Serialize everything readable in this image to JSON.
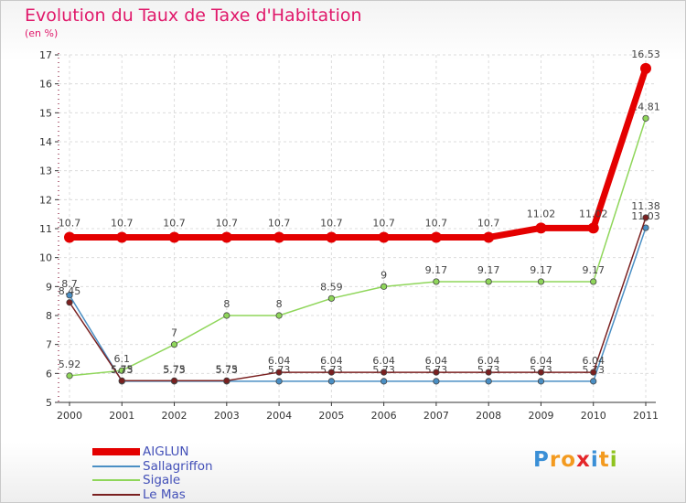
{
  "title": "Evolution du Taux de Taxe d'Habitation",
  "unit": "(en %)",
  "brand": {
    "letters": [
      "P",
      "r",
      "o",
      "x",
      "i",
      "t",
      "i"
    ],
    "colors": [
      "#3a8fd6",
      "#f39a1f",
      "#f39a1f",
      "#e4262a",
      "#3a8fd6",
      "#f39a1f",
      "#8fc31f"
    ]
  },
  "chart_data": {
    "type": "line",
    "title": "Evolution du Taux de Taxe d'Habitation",
    "ylabel": "(en %)",
    "xlabel": "",
    "x": [
      "2000",
      "2001",
      "2002",
      "2003",
      "2004",
      "2005",
      "2006",
      "2007",
      "2008",
      "2009",
      "2010",
      "2011"
    ],
    "ylim": [
      5,
      17
    ],
    "yticks": [
      "5",
      "6",
      "7",
      "8",
      "9",
      "10",
      "11",
      "12",
      "13",
      "14",
      "15",
      "16",
      "17"
    ],
    "grid": true,
    "series": [
      {
        "name": "AIGLUN",
        "color": "#e40000",
        "values": [
          10.7,
          10.7,
          10.7,
          10.7,
          10.7,
          10.7,
          10.7,
          10.7,
          10.7,
          11.02,
          11.02,
          16.53
        ],
        "labels": [
          "10.7",
          "10.7",
          "10.7",
          "10.7",
          "10.7",
          "10.7",
          "10.7",
          "10.7",
          "10.7",
          "11.02",
          "11.02",
          "16.53"
        ]
      },
      {
        "name": "Sallagriffon",
        "color": "#4a8fc4",
        "values": [
          8.7,
          5.73,
          5.73,
          5.73,
          5.73,
          5.73,
          5.73,
          5.73,
          5.73,
          5.73,
          5.73,
          11.03
        ],
        "labels": [
          "8.7",
          "5.73",
          "5.73",
          "5.73",
          "5.73",
          "5.73",
          "5.73",
          "5.73",
          "5.73",
          "5.73",
          "5.73",
          "11.03"
        ]
      },
      {
        "name": "Sigale",
        "color": "#8fd65a",
        "values": [
          5.92,
          6.1,
          7,
          8,
          8,
          8.59,
          9,
          9.17,
          9.17,
          9.17,
          9.17,
          14.81
        ],
        "labels": [
          "5.92",
          "6.1",
          "7",
          "8",
          "8",
          "8.59",
          "9",
          "9.17",
          "9.17",
          "9.17",
          "9.17",
          "14.81"
        ]
      },
      {
        "name": "Le Mas",
        "color": "#7a2020",
        "values": [
          8.45,
          5.75,
          5.75,
          5.75,
          6.04,
          6.04,
          6.04,
          6.04,
          6.04,
          6.04,
          6.04,
          11.38
        ],
        "labels": [
          "8.45",
          "5.75",
          "5.75",
          "5.75",
          "6.04",
          "6.04",
          "6.04",
          "6.04",
          "6.04",
          "6.04",
          "6.04",
          "11.38"
        ]
      }
    ]
  }
}
